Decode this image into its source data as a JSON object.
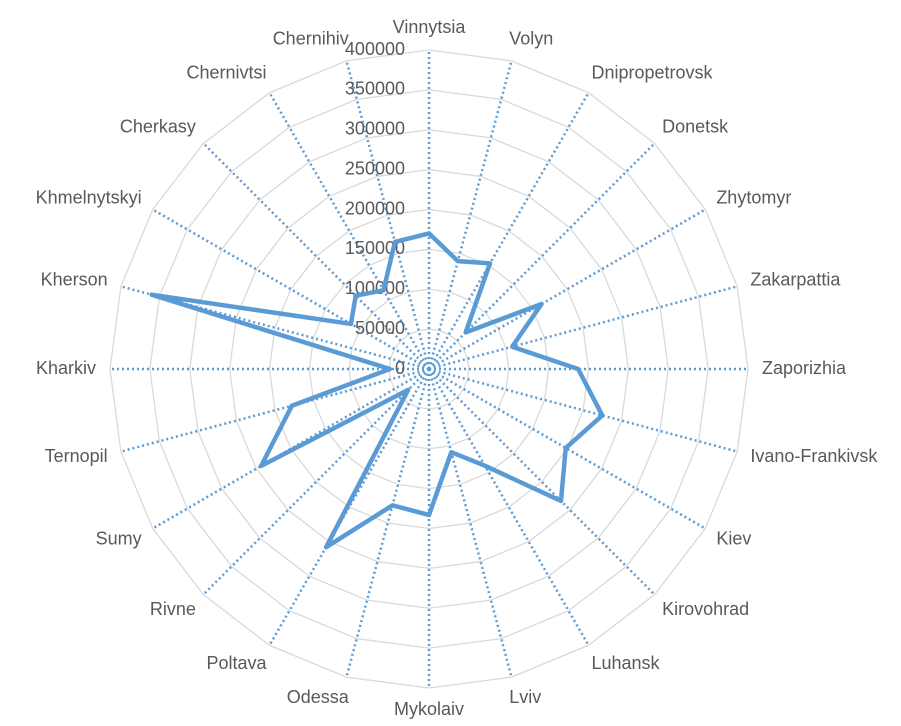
{
  "chart_data": {
    "type": "radar",
    "categories": [
      "Vinnytsia",
      "Volyn",
      "Dnipropetrovsk",
      "Donetsk",
      "Zhytomyr",
      "Zakarpattia",
      "Zaporizhia",
      "Ivano-Frankivsk",
      "Kiev",
      "Kirovohrad",
      "Luhansk",
      "Lviv",
      "Mykolaiv",
      "Odessa",
      "Poltava",
      "Rivne",
      "Sumy",
      "Ternopil",
      "Kharkiv",
      "Kherson",
      "Khmelnytskyi",
      "Cherkasy",
      "Chernivtsi",
      "Chernihiv"
    ],
    "series": [
      {
        "color": "#5b9bd5",
        "values": [
          170000,
          140000,
          153000,
          65000,
          163000,
          108000,
          187000,
          225000,
          198000,
          234000,
          140000,
          108000,
          183000,
          177000,
          258000,
          37000,
          243000,
          178000,
          49000,
          360000,
          113000,
          130000,
          114000,
          165000
        ]
      }
    ],
    "ylim": [
      0,
      400000
    ],
    "yticks": [
      0,
      50000,
      100000,
      150000,
      200000,
      250000,
      300000,
      350000,
      400000
    ],
    "grid": true
  }
}
